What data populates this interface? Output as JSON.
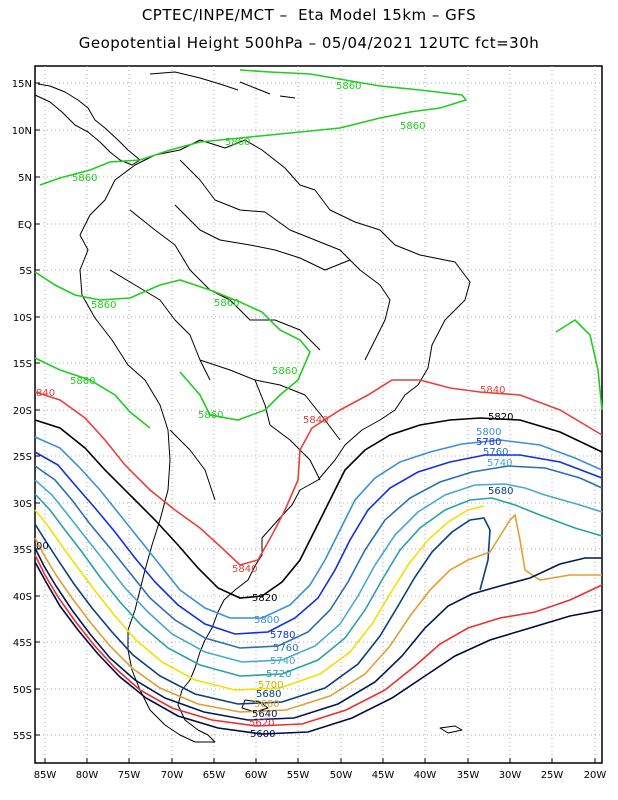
{
  "title_line1": "CPTEC/INPE/MCT –  Eta Model 15km – GFS",
  "title_line2": "Geopotential Height 500hPa – 05/04/2021 12UTC fct=30h",
  "lat_labels": [
    "15N",
    "10N",
    "5N",
    "EQ",
    "5S",
    "10S",
    "15S",
    "20S",
    "25S",
    "30S",
    "35S",
    "40S",
    "45S",
    "50S",
    "55S"
  ],
  "lon_labels": [
    "85W",
    "80W",
    "75W",
    "70W",
    "65W",
    "60W",
    "55W",
    "50W",
    "45W",
    "40W",
    "35W",
    "30W",
    "25W",
    "20W"
  ],
  "contours": [
    {
      "level": "5860",
      "color": "#22cc22"
    },
    {
      "level": "5840",
      "color": "#e8403a"
    },
    {
      "level": "5820",
      "color": "#000000"
    },
    {
      "level": "5800",
      "color": "#3b8fd8"
    },
    {
      "level": "5780",
      "color": "#1030e0"
    },
    {
      "level": "5760",
      "color": "#2a6fb0"
    },
    {
      "level": "5740",
      "color": "#48a8d0"
    },
    {
      "level": "5720",
      "color": "#2aa0a8"
    },
    {
      "level": "5700",
      "color": "#f2e000"
    },
    {
      "level": "5680",
      "color": "#0a3f7a"
    },
    {
      "level": "5660",
      "color": "#e0a030"
    },
    {
      "level": "5640",
      "color": "#001a50"
    },
    {
      "level": "5620",
      "color": "#e83030"
    },
    {
      "level": "5600",
      "color": "#000a40"
    }
  ],
  "label_5860": "5860",
  "label_5840": "5840",
  "label_5820": "5820",
  "label_5800": "5800",
  "label_5780": "5780",
  "label_5760": "5760",
  "label_5740": "5740",
  "label_5720": "5720",
  "label_5700": "5700",
  "label_5680": "5680",
  "label_5660": "5660",
  "label_5640": "5640",
  "label_5620": "5620",
  "label_5600": "5600",
  "edge_label_left_5840": "840",
  "edge_label_left_5600": "00"
}
